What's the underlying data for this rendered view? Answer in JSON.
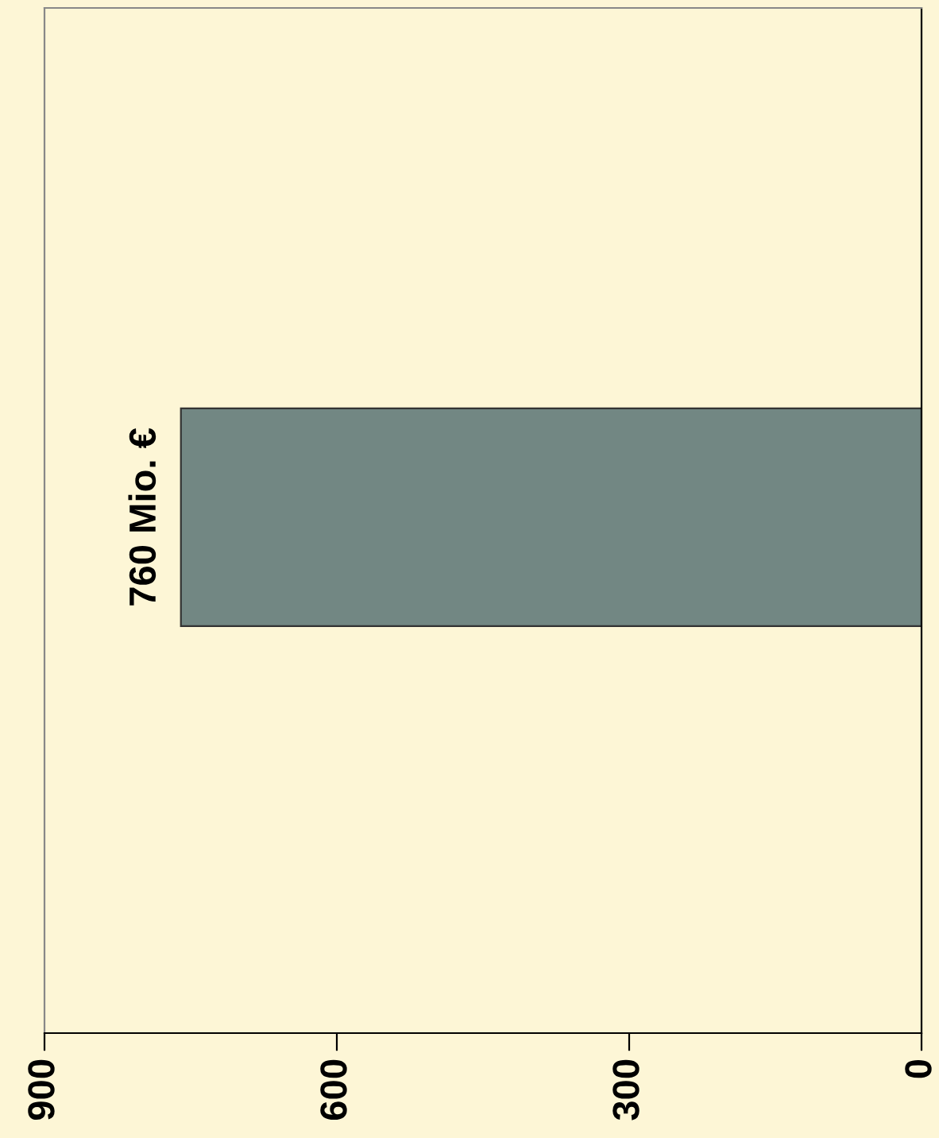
{
  "chart_data": {
    "type": "bar",
    "orientation": "horizontal",
    "categories": [
      null
    ],
    "values": [
      760
    ],
    "color": "#728783",
    "value_labels": [
      "760 Mio. €"
    ],
    "xlim": [
      900,
      0
    ],
    "xticks": [
      900,
      600,
      300,
      0
    ],
    "grid": false,
    "legend": false
  }
}
